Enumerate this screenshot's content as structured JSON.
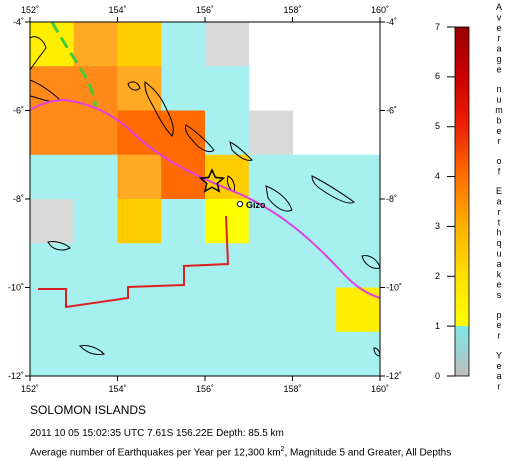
{
  "title": "SOLOMON ISLANDS",
  "event_line": "2011 10 05 15:02:35 UTC 7.61S 156.22E Depth: 85.5 km",
  "description": {
    "prefix": "Average number of Earthquakes per Year per 12,300 km",
    "superscript": "2",
    "suffix": ", Magnitude 5 and Greater, All Depths"
  },
  "map": {
    "lon_ticks": [
      "152˚",
      "154˚",
      "156˚",
      "158˚",
      "160˚"
    ],
    "lat_ticks": [
      "-4˚",
      "-6˚",
      "-8˚",
      "-10˚",
      "-12˚"
    ],
    "place_label": "Gizo",
    "epicenter_marker": "star-icon",
    "colors": {
      "plate_boundary": "#e040e0",
      "fault_dashed": "#44cc33",
      "boundary_line": "#dd2222",
      "coastline": "#000000"
    },
    "grid_values": [
      [
        1.6,
        3.0,
        2.2,
        0.7,
        0.2,
        null,
        null,
        null
      ],
      [
        3.6,
        3.6,
        3.0,
        0.8,
        0.7,
        null,
        null,
        null
      ],
      [
        3.6,
        3.6,
        4.2,
        4.2,
        0.6,
        0.2,
        null,
        null
      ],
      [
        0.7,
        0.7,
        3.0,
        4.2,
        2.2,
        0.6,
        0.9,
        0.3
      ],
      [
        0.2,
        0.4,
        2.2,
        0.7,
        1.0,
        0.6,
        0.6,
        0.6
      ],
      [
        0.6,
        0.9,
        0.9,
        0.9,
        0.7,
        0.7,
        0.6,
        0.6
      ],
      [
        0.6,
        0.9,
        0.9,
        0.9,
        0.6,
        0.6,
        0.8,
        1.5
      ],
      [
        0.7,
        0.7,
        0.7,
        0.6,
        0.6,
        0.3,
        0.3,
        0.4
      ],
      [
        0.3,
        0.3,
        null,
        null,
        null,
        0.3,
        0.3,
        0.5
      ]
    ]
  },
  "colorbar": {
    "title_words": [
      "Average",
      "number",
      "of",
      "Earthquakes",
      "per",
      "Year"
    ],
    "tick_labels": [
      "0",
      "1",
      "2",
      "3",
      "4",
      "5",
      "6",
      "7"
    ],
    "stops": [
      "#bdbdbd",
      "#7ee6e6",
      "#ffff00",
      "#ffb000",
      "#ff7000",
      "#ee2200",
      "#cc0000",
      "#990000"
    ]
  }
}
